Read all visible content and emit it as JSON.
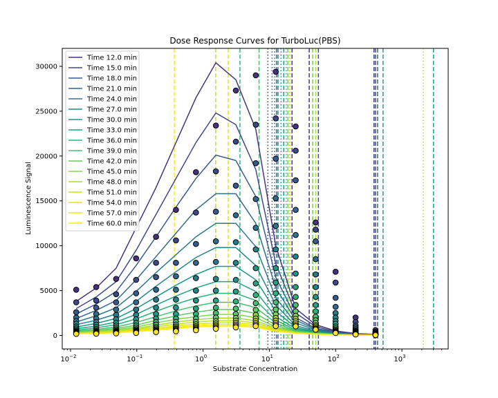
{
  "chart_data": {
    "type": "line",
    "title": "Dose Response Curves for TurboLuc(PBS)",
    "xlabel": "Substrate Concentration",
    "ylabel": "Luminescence Signal",
    "xscale": "log",
    "xlim": [
      0.0075,
      5000
    ],
    "ylim": [
      -1500,
      32000
    ],
    "x_ticks": [
      {
        "value": 0.01,
        "mant": "10",
        "exp": "−2"
      },
      {
        "value": 0.1,
        "mant": "10",
        "exp": "−1"
      },
      {
        "value": 1,
        "mant": "10",
        "exp": "0"
      },
      {
        "value": 10,
        "mant": "10",
        "exp": "1"
      },
      {
        "value": 100,
        "mant": "10",
        "exp": "2"
      },
      {
        "value": 1000,
        "mant": "10",
        "exp": "3"
      }
    ],
    "y_ticks": [
      {
        "value": 0,
        "label": "0"
      },
      {
        "value": 5000,
        "label": "5000"
      },
      {
        "value": 10000,
        "label": "10000"
      },
      {
        "value": 15000,
        "label": "15000"
      },
      {
        "value": 20000,
        "label": "20000"
      },
      {
        "value": 25000,
        "label": "25000"
      },
      {
        "value": 30000,
        "label": "30000"
      }
    ],
    "grid": false,
    "legend_position": "upper-left",
    "markers": "circles with black edge, colored by time (viridis)",
    "concentrations": [
      0.0122,
      0.0244,
      0.0488,
      0.0977,
      0.195,
      0.39,
      0.78,
      1.56,
      3.125,
      6.25,
      12.5,
      25,
      50,
      100,
      200,
      400
    ],
    "vline_colors": [
      "#453781",
      "#3b528b",
      "#33638d",
      "#2c728e",
      "#26828e",
      "#21918c",
      "#1f9e89",
      "#20a386",
      "#35b779",
      "#4ac16d",
      "#6ece58",
      "#90d743",
      "#b5de2b",
      "#c8e020",
      "#dde318",
      "#fde725"
    ],
    "series": [
      {
        "name": "Time 12.0 min",
        "color": "#46327e",
        "curve": [
          3800,
          5300,
          7500,
          12000,
          16500,
          21500,
          26500,
          30400,
          28500,
          23000,
          10000,
          3000,
          1200,
          500,
          220,
          120
        ],
        "points": [
          5100,
          5400,
          6300,
          8600,
          11000,
          14000,
          18200,
          23400,
          27300,
          29000,
          29400,
          23300,
          12600,
          7100,
          2000,
          600
        ],
        "vlines": [
          {
            "x": 9.5,
            "style": "dotted"
          },
          {
            "x": 40,
            "style": "dashed"
          },
          {
            "x": 380,
            "style": "dashed"
          }
        ]
      },
      {
        "name": "Time 15.0 min",
        "color": "#3e4989",
        "curve": [
          3000,
          4300,
          6000,
          9500,
          13500,
          17500,
          21500,
          24800,
          23500,
          18500,
          8000,
          2500,
          1000,
          400,
          190,
          100
        ],
        "points": [
          3700,
          3900,
          4600,
          6200,
          8100,
          10600,
          13700,
          18300,
          21600,
          23500,
          24200,
          20600,
          11800,
          5900,
          1500,
          400
        ],
        "vlines": [
          {
            "x": 11,
            "style": "dotted"
          },
          {
            "x": 55,
            "style": "dashed"
          },
          {
            "x": 400,
            "style": "dashed"
          }
        ]
      },
      {
        "name": "Time 18.0 min",
        "color": "#375b8d",
        "curve": [
          2400,
          3500,
          4900,
          7800,
          11000,
          14300,
          17500,
          20100,
          19500,
          15500,
          6500,
          2000,
          800,
          350,
          160,
          90
        ],
        "points": [
          2600,
          3100,
          3700,
          4700,
          6500,
          8100,
          10200,
          13800,
          16700,
          19200,
          19700,
          17300,
          10500,
          4200,
          1100,
          300
        ],
        "vlines": [
          {
            "x": 12,
            "style": "dotted"
          },
          {
            "x": 430,
            "style": "dashed"
          }
        ]
      },
      {
        "name": "Time 21.0 min",
        "color": "#306a8e",
        "curve": [
          1900,
          2800,
          3900,
          6200,
          8800,
          11400,
          14000,
          15800,
          15800,
          12500,
          5300,
          1700,
          700,
          300,
          140,
          80
        ],
        "points": [
          2000,
          2400,
          2900,
          3700,
          5100,
          6600,
          8100,
          10500,
          13400,
          15200,
          15300,
          14000,
          8500,
          3200,
          900,
          250
        ],
        "vlines": [
          {
            "x": 12.8,
            "style": "dashed"
          }
        ]
      },
      {
        "name": "Time 24.0 min",
        "color": "#2a788e",
        "curve": [
          1500,
          2200,
          3100,
          4900,
          7000,
          9000,
          11000,
          12500,
          12500,
          9900,
          4200,
          1400,
          600,
          250,
          120,
          70
        ],
        "points": [
          1600,
          1900,
          2300,
          2900,
          4000,
          5100,
          6400,
          8200,
          10400,
          12000,
          12200,
          11200,
          6800,
          2500,
          700,
          200
        ],
        "vlines": [
          {
            "x": 13.5,
            "style": "dashed"
          }
        ]
      },
      {
        "name": "Time 27.0 min",
        "color": "#24868e",
        "curve": [
          1200,
          1700,
          2400,
          3800,
          5500,
          7100,
          8700,
          9800,
          9800,
          7800,
          3400,
          1100,
          500,
          210,
          100,
          60
        ],
        "points": [
          1300,
          1500,
          1800,
          2300,
          3100,
          4000,
          5000,
          6300,
          8100,
          9600,
          9600,
          8800,
          5400,
          2000,
          550,
          160
        ],
        "vlines": [
          {
            "x": 15,
            "style": "dotted"
          }
        ]
      },
      {
        "name": "Time 30.0 min",
        "color": "#1f958b",
        "curve": [
          950,
          1350,
          1900,
          3000,
          4300,
          5600,
          6800,
          7700,
          7700,
          6200,
          2700,
          900,
          420,
          180,
          90,
          55
        ],
        "points": [
          1000,
          1200,
          1400,
          1800,
          2400,
          3100,
          3900,
          5000,
          6200,
          7500,
          7500,
          6900,
          4300,
          1600,
          450,
          140
        ],
        "vlines": [
          {
            "x": 16.5,
            "style": "dashed"
          }
        ]
      },
      {
        "name": "Time 33.0 min",
        "color": "#20a386",
        "curve": [
          750,
          1050,
          1500,
          2350,
          3400,
          4400,
          5300,
          6000,
          6000,
          4900,
          2100,
          750,
          360,
          160,
          80,
          50
        ],
        "points": [
          800,
          950,
          1100,
          1400,
          1900,
          2400,
          3000,
          3900,
          4900,
          5800,
          5900,
          5400,
          3400,
          1300,
          380,
          120
        ],
        "vlines": [
          {
            "x": 520,
            "style": "dashed"
          },
          {
            "x": 3000,
            "style": "dashed"
          }
        ]
      },
      {
        "name": "Time 36.0 min",
        "color": "#2eb37c",
        "curve": [
          600,
          850,
          1200,
          1850,
          2700,
          3500,
          4200,
          4700,
          4700,
          3900,
          1700,
          620,
          300,
          140,
          70,
          45
        ],
        "points": [
          650,
          750,
          880,
          1100,
          1500,
          1900,
          2400,
          3100,
          3800,
          4500,
          4700,
          4300,
          2700,
          1000,
          320,
          100
        ],
        "vlines": [
          {
            "x": 3.6,
            "style": "dashed"
          },
          {
            "x": 18,
            "style": "dotted"
          }
        ]
      },
      {
        "name": "Time 39.0 min",
        "color": "#45bf70",
        "curve": [
          480,
          680,
          950,
          1450,
          2100,
          2750,
          3300,
          3700,
          3700,
          3100,
          1400,
          520,
          260,
          120,
          65,
          40
        ],
        "points": [
          520,
          600,
          700,
          880,
          1200,
          1500,
          1900,
          2500,
          3000,
          3600,
          3700,
          3400,
          2100,
          800,
          270,
          90
        ],
        "vlines": [
          {
            "x": 7,
            "style": "dashed"
          }
        ]
      },
      {
        "name": "Time 42.0 min",
        "color": "#63cb5f",
        "curve": [
          400,
          560,
          780,
          1150,
          1700,
          2200,
          2600,
          2900,
          2900,
          2450,
          1150,
          450,
          230,
          110,
          60,
          38
        ],
        "points": [
          430,
          490,
          570,
          700,
          950,
          1200,
          1500,
          2000,
          2400,
          2850,
          2900,
          2700,
          1700,
          650,
          230,
          80
        ],
        "vlines": [
          {
            "x": 19,
            "style": "dashed"
          },
          {
            "x": 45,
            "style": "dashed"
          }
        ]
      },
      {
        "name": "Time 45.0 min",
        "color": "#85d54a",
        "curve": [
          340,
          470,
          650,
          950,
          1400,
          1800,
          2100,
          2350,
          2350,
          2000,
          950,
          400,
          210,
          100,
          55,
          35
        ],
        "points": [
          360,
          410,
          480,
          590,
          800,
          1000,
          1250,
          1600,
          1950,
          2300,
          2350,
          2200,
          1400,
          540,
          200,
          70
        ],
        "vlines": [
          {
            "x": 20.5,
            "style": "dotted"
          }
        ]
      },
      {
        "name": "Time 48.0 min",
        "color": "#a8db34",
        "curve": [
          290,
          400,
          550,
          800,
          1150,
          1500,
          1750,
          1950,
          1950,
          1650,
          800,
          350,
          190,
          95,
          50,
          33
        ],
        "points": [
          310,
          350,
          410,
          500,
          680,
          850,
          1050,
          1350,
          1650,
          1900,
          1950,
          1850,
          1150,
          450,
          180,
          65
        ],
        "vlines": [
          {
            "x": 50,
            "style": "dashed"
          },
          {
            "x": 2100,
            "style": "dotted"
          }
        ]
      },
      {
        "name": "Time 51.0 min",
        "color": "#c5e021",
        "curve": [
          250,
          350,
          470,
          680,
          980,
          1250,
          1500,
          1650,
          1650,
          1400,
          700,
          310,
          170,
          90,
          48,
          32
        ],
        "points": [
          270,
          300,
          350,
          430,
          580,
          730,
          900,
          1150,
          1400,
          1620,
          1650,
          1580,
          1000,
          390,
          160,
          60
        ],
        "vlines": [
          {
            "x": 1.55,
            "style": "dashed"
          }
        ]
      },
      {
        "name": "Time 54.0 min",
        "color": "#e2e418",
        "curve": [
          220,
          300,
          400,
          580,
          830,
          1050,
          1280,
          1400,
          1400,
          1200,
          600,
          280,
          160,
          85,
          46,
          30
        ],
        "points": [
          235,
          260,
          300,
          370,
          500,
          630,
          780,
          1000,
          1200,
          1380,
          1400,
          1350,
          850,
          340,
          140,
          55
        ],
        "vlines": [
          {
            "x": 2.4,
            "style": "dashed"
          },
          {
            "x": 20,
            "style": "dotted"
          }
        ]
      },
      {
        "name": "Time 57.0 min",
        "color": "#f1e51d",
        "curve": [
          190,
          260,
          350,
          500,
          700,
          900,
          1100,
          1200,
          1200,
          1050,
          530,
          250,
          150,
          80,
          44,
          29
        ],
        "points": [
          205,
          230,
          265,
          325,
          430,
          540,
          670,
          860,
          1030,
          1190,
          1200,
          1160,
          740,
          300,
          125,
          50
        ],
        "vlines": [
          {
            "x": 0.37,
            "style": "dashed"
          }
        ]
      },
      {
        "name": "Time 60.0 min",
        "color": "#fde725",
        "curve": [
          170,
          230,
          310,
          440,
          620,
          790,
          960,
          1050,
          1050,
          920,
          470,
          230,
          140,
          78,
          43,
          28
        ],
        "points": [
          180,
          200,
          230,
          285,
          380,
          470,
          590,
          750,
          900,
          1040,
          1050,
          1020,
          650,
          270,
          115,
          45
        ],
        "vlines": [
          {
            "x": 22,
            "style": "dashed"
          }
        ]
      }
    ]
  }
}
